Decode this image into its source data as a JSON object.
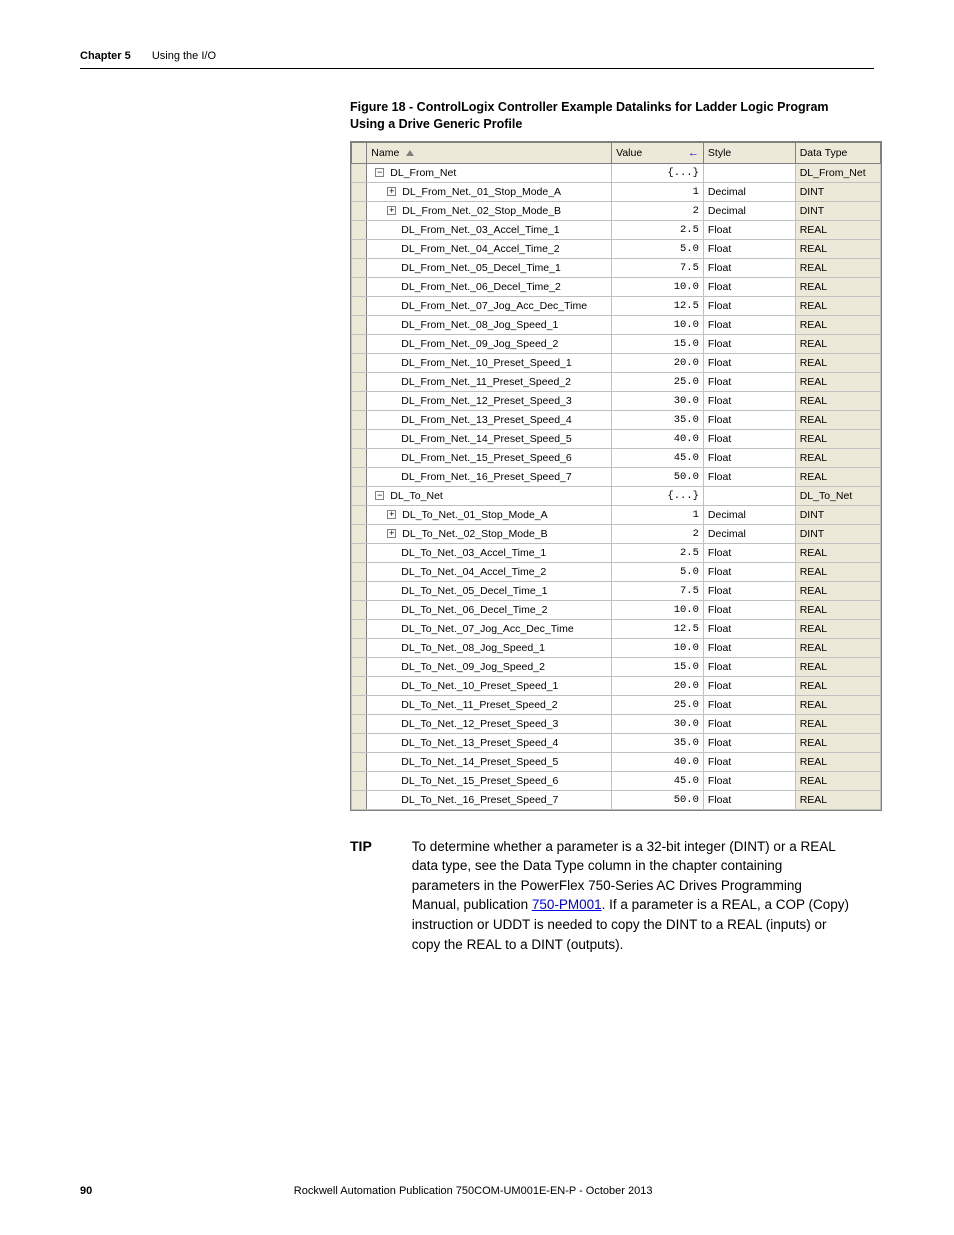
{
  "header": {
    "chapter_label": "Chapter 5",
    "chapter_title": "Using the I/O"
  },
  "figure": {
    "caption": "Figure 18 - ControlLogix Controller Example Datalinks for Ladder Logic Program Using a Drive Generic Profile"
  },
  "table": {
    "columns": {
      "name": "Name",
      "value": "Value",
      "style": "Style",
      "data_type": "Data Type"
    },
    "rows": [
      {
        "indent": 0,
        "toggle": "−",
        "name": "DL_From_Net",
        "value": "{...}",
        "style": "",
        "dtype": "DL_From_Net"
      },
      {
        "indent": 1,
        "toggle": "+",
        "name": "DL_From_Net._01_Stop_Mode_A",
        "value": "1",
        "style": "Decimal",
        "dtype": "DINT"
      },
      {
        "indent": 1,
        "toggle": "+",
        "name": "DL_From_Net._02_Stop_Mode_B",
        "value": "2",
        "style": "Decimal",
        "dtype": "DINT"
      },
      {
        "indent": 1,
        "toggle": "",
        "name": "DL_From_Net._03_Accel_Time_1",
        "value": "2.5",
        "style": "Float",
        "dtype": "REAL"
      },
      {
        "indent": 1,
        "toggle": "",
        "name": "DL_From_Net._04_Accel_Time_2",
        "value": "5.0",
        "style": "Float",
        "dtype": "REAL"
      },
      {
        "indent": 1,
        "toggle": "",
        "name": "DL_From_Net._05_Decel_Time_1",
        "value": "7.5",
        "style": "Float",
        "dtype": "REAL"
      },
      {
        "indent": 1,
        "toggle": "",
        "name": "DL_From_Net._06_Decel_Time_2",
        "value": "10.0",
        "style": "Float",
        "dtype": "REAL"
      },
      {
        "indent": 1,
        "toggle": "",
        "name": "DL_From_Net._07_Jog_Acc_Dec_Time",
        "value": "12.5",
        "style": "Float",
        "dtype": "REAL"
      },
      {
        "indent": 1,
        "toggle": "",
        "name": "DL_From_Net._08_Jog_Speed_1",
        "value": "10.0",
        "style": "Float",
        "dtype": "REAL"
      },
      {
        "indent": 1,
        "toggle": "",
        "name": "DL_From_Net._09_Jog_Speed_2",
        "value": "15.0",
        "style": "Float",
        "dtype": "REAL"
      },
      {
        "indent": 1,
        "toggle": "",
        "name": "DL_From_Net._10_Preset_Speed_1",
        "value": "20.0",
        "style": "Float",
        "dtype": "REAL"
      },
      {
        "indent": 1,
        "toggle": "",
        "name": "DL_From_Net._11_Preset_Speed_2",
        "value": "25.0",
        "style": "Float",
        "dtype": "REAL"
      },
      {
        "indent": 1,
        "toggle": "",
        "name": "DL_From_Net._12_Preset_Speed_3",
        "value": "30.0",
        "style": "Float",
        "dtype": "REAL"
      },
      {
        "indent": 1,
        "toggle": "",
        "name": "DL_From_Net._13_Preset_Speed_4",
        "value": "35.0",
        "style": "Float",
        "dtype": "REAL"
      },
      {
        "indent": 1,
        "toggle": "",
        "name": "DL_From_Net._14_Preset_Speed_5",
        "value": "40.0",
        "style": "Float",
        "dtype": "REAL"
      },
      {
        "indent": 1,
        "toggle": "",
        "name": "DL_From_Net._15_Preset_Speed_6",
        "value": "45.0",
        "style": "Float",
        "dtype": "REAL"
      },
      {
        "indent": 1,
        "toggle": "",
        "name": "DL_From_Net._16_Preset_Speed_7",
        "value": "50.0",
        "style": "Float",
        "dtype": "REAL"
      },
      {
        "indent": 0,
        "toggle": "−",
        "name": "DL_To_Net",
        "value": "{...}",
        "style": "",
        "dtype": "DL_To_Net"
      },
      {
        "indent": 1,
        "toggle": "+",
        "name": "DL_To_Net._01_Stop_Mode_A",
        "value": "1",
        "style": "Decimal",
        "dtype": "DINT"
      },
      {
        "indent": 1,
        "toggle": "+",
        "name": "DL_To_Net._02_Stop_Mode_B",
        "value": "2",
        "style": "Decimal",
        "dtype": "DINT"
      },
      {
        "indent": 1,
        "toggle": "",
        "name": "DL_To_Net._03_Accel_Time_1",
        "value": "2.5",
        "style": "Float",
        "dtype": "REAL"
      },
      {
        "indent": 1,
        "toggle": "",
        "name": "DL_To_Net._04_Accel_Time_2",
        "value": "5.0",
        "style": "Float",
        "dtype": "REAL"
      },
      {
        "indent": 1,
        "toggle": "",
        "name": "DL_To_Net._05_Decel_Time_1",
        "value": "7.5",
        "style": "Float",
        "dtype": "REAL"
      },
      {
        "indent": 1,
        "toggle": "",
        "name": "DL_To_Net._06_Decel_Time_2",
        "value": "10.0",
        "style": "Float",
        "dtype": "REAL"
      },
      {
        "indent": 1,
        "toggle": "",
        "name": "DL_To_Net._07_Jog_Acc_Dec_Time",
        "value": "12.5",
        "style": "Float",
        "dtype": "REAL"
      },
      {
        "indent": 1,
        "toggle": "",
        "name": "DL_To_Net._08_Jog_Speed_1",
        "value": "10.0",
        "style": "Float",
        "dtype": "REAL"
      },
      {
        "indent": 1,
        "toggle": "",
        "name": "DL_To_Net._09_Jog_Speed_2",
        "value": "15.0",
        "style": "Float",
        "dtype": "REAL"
      },
      {
        "indent": 1,
        "toggle": "",
        "name": "DL_To_Net._10_Preset_Speed_1",
        "value": "20.0",
        "style": "Float",
        "dtype": "REAL"
      },
      {
        "indent": 1,
        "toggle": "",
        "name": "DL_To_Net._11_Preset_Speed_2",
        "value": "25.0",
        "style": "Float",
        "dtype": "REAL"
      },
      {
        "indent": 1,
        "toggle": "",
        "name": "DL_To_Net._12_Preset_Speed_3",
        "value": "30.0",
        "style": "Float",
        "dtype": "REAL"
      },
      {
        "indent": 1,
        "toggle": "",
        "name": "DL_To_Net._13_Preset_Speed_4",
        "value": "35.0",
        "style": "Float",
        "dtype": "REAL"
      },
      {
        "indent": 1,
        "toggle": "",
        "name": "DL_To_Net._14_Preset_Speed_5",
        "value": "40.0",
        "style": "Float",
        "dtype": "REAL"
      },
      {
        "indent": 1,
        "toggle": "",
        "name": "DL_To_Net._15_Preset_Speed_6",
        "value": "45.0",
        "style": "Float",
        "dtype": "REAL"
      },
      {
        "indent": 1,
        "toggle": "",
        "name": "DL_To_Net._16_Preset_Speed_7",
        "value": "50.0",
        "style": "Float",
        "dtype": "REAL"
      }
    ]
  },
  "tip": {
    "label": "TIP",
    "text_before_link": "To determine whether a parameter is a 32-bit integer (DINT) or a REAL data type, see the Data Type column in the chapter containing parameters in the PowerFlex 750-Series AC Drives Programming Manual, publication ",
    "link_text": "750-PM001",
    "text_after_link": ". If a parameter is a REAL, a COP (Copy) instruction or UDDT is needed to copy the DINT to a REAL (inputs) or copy the REAL to a DINT (outputs)."
  },
  "footer": {
    "page_number": "90",
    "publication": "Rockwell Automation Publication 750COM-UM001E-EN-P - October 2013"
  }
}
